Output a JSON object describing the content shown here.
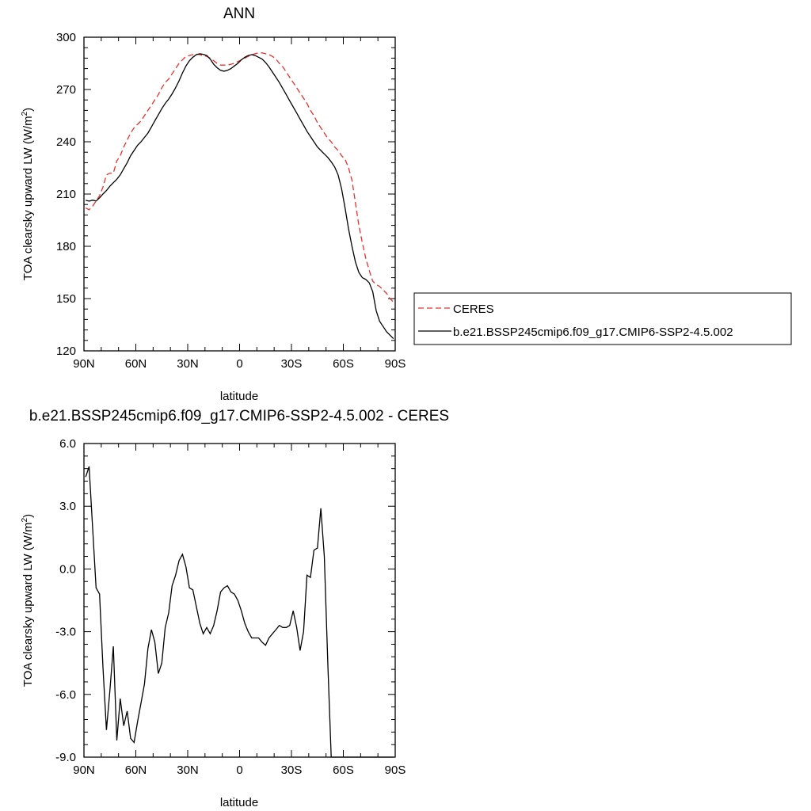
{
  "chart_data": [
    {
      "type": "line",
      "title": "ANN",
      "xlabel": "latitude",
      "ylabel": "TOA clearsky upward LW (W/m",
      "ylabel_sup": "2",
      "ylabel_end": ")",
      "xlim": [
        90,
        -90
      ],
      "ylim": [
        120,
        300
      ],
      "x_ticks": [
        {
          "value": 90,
          "label": "90N"
        },
        {
          "value": 60,
          "label": "60N"
        },
        {
          "value": 30,
          "label": "30N"
        },
        {
          "value": 0,
          "label": "0"
        },
        {
          "value": -30,
          "label": "30S"
        },
        {
          "value": -60,
          "label": "60S"
        },
        {
          "value": -90,
          "label": "90S"
        }
      ],
      "y_ticks": [
        {
          "value": 300,
          "label": "300"
        },
        {
          "value": 270,
          "label": "270"
        },
        {
          "value": 240,
          "label": "240"
        },
        {
          "value": 210,
          "label": "210"
        },
        {
          "value": 180,
          "label": "180"
        },
        {
          "value": 150,
          "label": "150"
        },
        {
          "value": 120,
          "label": "120"
        }
      ],
      "legend_position": "right",
      "series": [
        {
          "name": "CERES",
          "color": "#e8312f",
          "dash": "dashed",
          "x": [
            89,
            87,
            85,
            83,
            81,
            79,
            77,
            75,
            73,
            71,
            69,
            67,
            65,
            63,
            61,
            59,
            57,
            55,
            53,
            51,
            49,
            47,
            45,
            43,
            41,
            39,
            37,
            35,
            33,
            31,
            29,
            27,
            25,
            23,
            21,
            19,
            17,
            15,
            13,
            11,
            9,
            7,
            5,
            3,
            1,
            -1,
            -3,
            -5,
            -7,
            -9,
            -11,
            -13,
            -15,
            -17,
            -19,
            -21,
            -23,
            -25,
            -27,
            -29,
            -31,
            -33,
            -35,
            -37,
            -39,
            -41,
            -43,
            -45,
            -47,
            -49,
            -51,
            -53,
            -55,
            -57,
            -59,
            -61,
            -63,
            -65,
            -67,
            -69,
            -71,
            -73,
            -75,
            -77,
            -79,
            -81,
            -83,
            -85,
            -87,
            -89
          ],
          "values": [
            202,
            201,
            203,
            206,
            209,
            214,
            221,
            222,
            222,
            229,
            232,
            237,
            241,
            245,
            248,
            250,
            252,
            255,
            258,
            261,
            264,
            267,
            271,
            274,
            276,
            279,
            282,
            285,
            287,
            289,
            289.5,
            290,
            290.3,
            290,
            289.5,
            289,
            288,
            286.5,
            285,
            284,
            284,
            284,
            284.5,
            285,
            286,
            287,
            288,
            289,
            290,
            290.5,
            291,
            291,
            290.5,
            290,
            289,
            287.5,
            285,
            283,
            280,
            277,
            274,
            271,
            268,
            265,
            262,
            258,
            255,
            251,
            248,
            245,
            242,
            240,
            237,
            235,
            232,
            230,
            225,
            218,
            205,
            192,
            182,
            173,
            166,
            160,
            158,
            157,
            155,
            153,
            150,
            148
          ]
        },
        {
          "name": "b.e21.BSSP245cmip6.f09_g17.CMIP6-SSP2-4.5.002",
          "color": "#000000",
          "dash": "solid",
          "x": [
            89,
            87,
            85,
            83,
            81,
            79,
            77,
            75,
            73,
            71,
            69,
            67,
            65,
            63,
            61,
            59,
            57,
            55,
            53,
            51,
            49,
            47,
            45,
            43,
            41,
            39,
            37,
            35,
            33,
            31,
            29,
            27,
            25,
            23,
            21,
            19,
            17,
            15,
            13,
            11,
            9,
            7,
            5,
            3,
            1,
            -1,
            -3,
            -5,
            -7,
            -9,
            -11,
            -13,
            -15,
            -17,
            -19,
            -21,
            -23,
            -25,
            -27,
            -29,
            -31,
            -33,
            -35,
            -37,
            -39,
            -41,
            -43,
            -45,
            -47,
            -49,
            -51,
            -53,
            -55,
            -57,
            -59,
            -61,
            -63,
            -65,
            -67,
            -69,
            -71,
            -73,
            -75,
            -77,
            -79,
            -81,
            -83,
            -85,
            -87,
            -89
          ],
          "values": [
            206.4,
            205.9,
            206.5,
            206,
            207.8,
            210,
            212,
            214.5,
            216.5,
            218.5,
            221,
            224.5,
            228,
            232,
            235,
            238,
            240,
            242.5,
            245,
            248.5,
            252,
            255.5,
            259,
            262,
            264.5,
            267.5,
            271,
            275,
            279.5,
            283.5,
            286.5,
            288.5,
            290,
            290.5,
            290.2,
            289.5,
            287.5,
            284.5,
            282.5,
            281,
            280.5,
            281,
            282,
            283.5,
            285,
            287,
            288.5,
            289.5,
            290,
            289.5,
            288.5,
            287.5,
            285.5,
            283,
            280,
            277,
            274,
            270.5,
            267,
            263.5,
            260,
            256.5,
            253,
            249.5,
            246,
            243,
            240,
            237,
            235,
            233,
            231,
            228.5,
            225.5,
            221,
            213,
            202,
            190,
            180,
            171,
            165,
            162,
            161,
            159,
            154,
            143,
            137,
            134,
            131,
            129,
            127
          ]
        }
      ]
    },
    {
      "type": "line",
      "title": "b.e21.BSSP245cmip6.f09_g17.CMIP6-SSP2-4.5.002 - CERES",
      "xlabel": "latitude",
      "ylabel": "TOA clearsky upward LW (W/m",
      "ylabel_sup": "2",
      "ylabel_end": ")",
      "xlim": [
        90,
        -90
      ],
      "ylim": [
        -9,
        6
      ],
      "x_ticks": [
        {
          "value": 90,
          "label": "90N"
        },
        {
          "value": 60,
          "label": "60N"
        },
        {
          "value": 30,
          "label": "30N"
        },
        {
          "value": 0,
          "label": "0"
        },
        {
          "value": -30,
          "label": "30S"
        },
        {
          "value": -60,
          "label": "60S"
        },
        {
          "value": -90,
          "label": "90S"
        }
      ],
      "y_ticks": [
        {
          "value": 6,
          "label": "6.0"
        },
        {
          "value": 3,
          "label": "3.0"
        },
        {
          "value": 0,
          "label": "0.0"
        },
        {
          "value": -3,
          "label": "-3.0"
        },
        {
          "value": -6,
          "label": "-6.0"
        },
        {
          "value": -9,
          "label": "-9.0"
        }
      ],
      "series": [
        {
          "color": "#000000",
          "x": [
            89,
            87,
            85,
            83,
            81,
            79,
            77,
            75,
            73,
            71,
            69,
            67,
            65,
            63,
            61,
            59,
            57,
            55,
            53,
            51,
            49,
            47,
            45,
            43,
            41,
            39,
            37,
            35,
            33,
            31,
            29,
            27,
            25,
            23,
            21,
            19,
            17,
            15,
            13,
            11,
            9,
            7,
            5,
            3,
            1,
            -1,
            -3,
            -5,
            -7,
            -9,
            -11,
            -13,
            -15,
            -17,
            -19,
            -21,
            -23,
            -25,
            -27,
            -29,
            -31,
            -33,
            -35,
            -37,
            -39,
            -41,
            -43,
            -45,
            -47,
            -49,
            -51,
            -53,
            -55,
            -57,
            -59,
            -61,
            -63,
            -65,
            -67,
            -69,
            -71,
            -73,
            -75,
            -77,
            -79,
            -81,
            -83,
            -85,
            -87,
            -89
          ],
          "values": [
            4.4,
            4.9,
            2.0,
            -0.9,
            -1.2,
            -4.7,
            -7.7,
            -5.8,
            -3.7,
            -8.2,
            -6.2,
            -7.5,
            -6.8,
            -8.1,
            -8.3,
            -7.3,
            -6.4,
            -5.5,
            -3.8,
            -2.9,
            -3.5,
            -5.0,
            -4.5,
            -2.8,
            -2.1,
            -0.8,
            -0.3,
            0.4,
            0.7,
            0.1,
            -0.9,
            -1.0,
            -1.8,
            -2.6,
            -3.1,
            -2.8,
            -3.1,
            -2.7,
            -2.0,
            -1.1,
            -0.9,
            -0.8,
            -1.1,
            -1.2,
            -1.5,
            -2.0,
            -2.6,
            -3.0,
            -3.3,
            -3.3,
            -3.3,
            -3.5,
            -3.65,
            -3.3,
            -3.1,
            -2.9,
            -2.7,
            -2.8,
            -2.8,
            -2.7,
            -2.0,
            -2.8,
            -3.9,
            -3.0,
            -0.3,
            -0.4,
            0.9,
            1.0,
            2.9,
            0.6,
            -4.5,
            -9.0,
            -9.0,
            -9.0,
            -9.0,
            -9.0,
            -9.0,
            -9.0,
            -9.0,
            -9.0,
            -9.0,
            -9.0,
            -9.0,
            -9.0,
            -9.0,
            -9.0,
            -9.0,
            -9.0,
            -9.0,
            -9.0
          ]
        }
      ]
    }
  ]
}
